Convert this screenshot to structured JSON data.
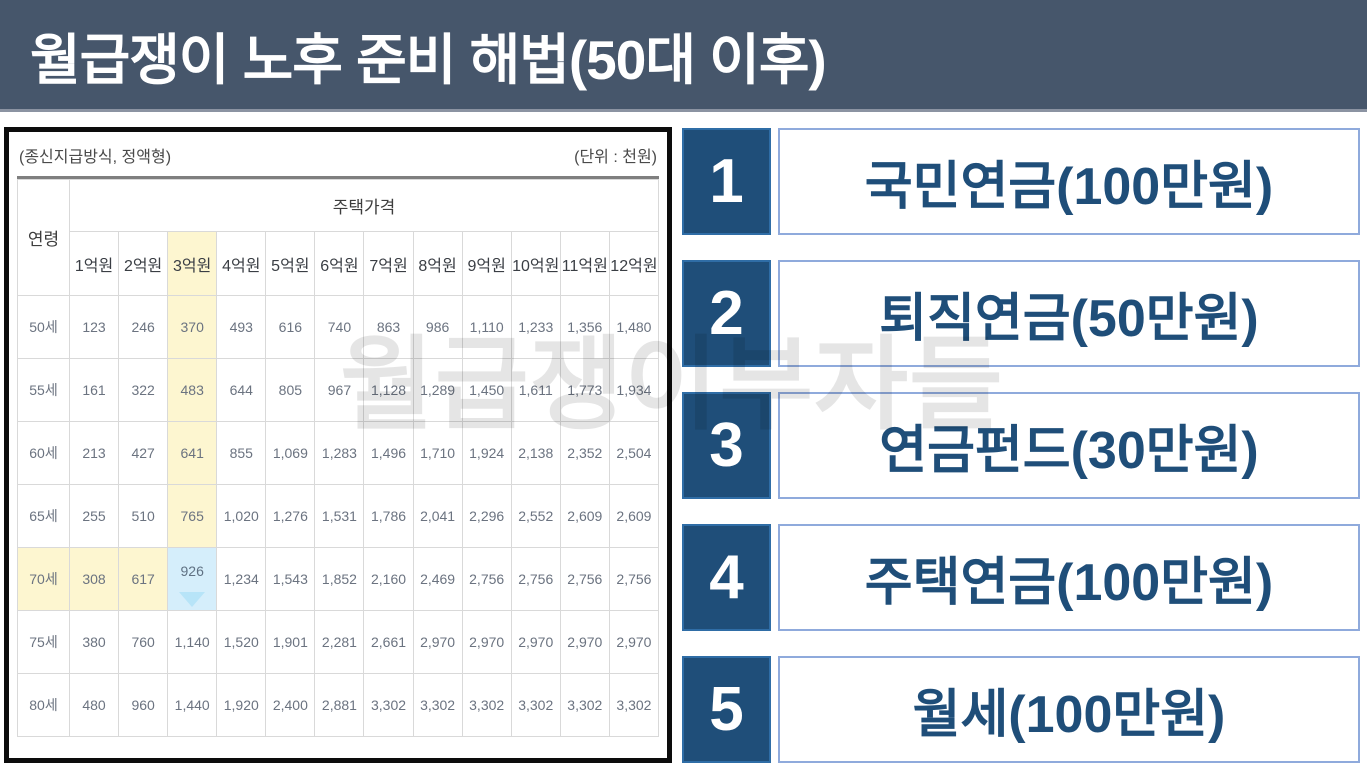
{
  "header": {
    "title": "월급쟁이 노후 준비 해법(50대 이후)",
    "bg_color": "#46566b",
    "text_color": "#ffffff"
  },
  "watermark": {
    "text": "월급쟁이부자들"
  },
  "table_panel": {
    "caption_left": "(종신지급방식, 정액형)",
    "caption_right": "(단위 : 천원)",
    "age_header": "연령",
    "price_header": "주택가격",
    "columns": [
      "1억원",
      "2억원",
      "3억원",
      "4억원",
      "5억원",
      "6억원",
      "7억원",
      "8억원",
      "9억원",
      "10억원",
      "11억원",
      "12억원"
    ],
    "rows": [
      {
        "age": "50세",
        "values": [
          "123",
          "246",
          "370",
          "493",
          "616",
          "740",
          "863",
          "986",
          "1,110",
          "1,233",
          "1,356",
          "1,480"
        ]
      },
      {
        "age": "55세",
        "values": [
          "161",
          "322",
          "483",
          "644",
          "805",
          "967",
          "1,128",
          "1,289",
          "1,450",
          "1,611",
          "1,773",
          "1,934"
        ]
      },
      {
        "age": "60세",
        "values": [
          "213",
          "427",
          "641",
          "855",
          "1,069",
          "1,283",
          "1,496",
          "1,710",
          "1,924",
          "2,138",
          "2,352",
          "2,504"
        ]
      },
      {
        "age": "65세",
        "values": [
          "255",
          "510",
          "765",
          "1,020",
          "1,276",
          "1,531",
          "1,786",
          "2,041",
          "2,296",
          "2,552",
          "2,609",
          "2,609"
        ]
      },
      {
        "age": "70세",
        "values": [
          "308",
          "617",
          "926",
          "1,234",
          "1,543",
          "1,852",
          "2,160",
          "2,469",
          "2,756",
          "2,756",
          "2,756",
          "2,756"
        ]
      },
      {
        "age": "75세",
        "values": [
          "380",
          "760",
          "1,140",
          "1,520",
          "1,901",
          "2,281",
          "2,661",
          "2,970",
          "2,970",
          "2,970",
          "2,970",
          "2,970"
        ]
      },
      {
        "age": "80세",
        "values": [
          "480",
          "960",
          "1,440",
          "1,920",
          "2,400",
          "2,881",
          "3,302",
          "3,302",
          "3,302",
          "3,302",
          "3,302",
          "3,302"
        ]
      }
    ],
    "highlights": {
      "yellow_col_index": 2,
      "yellow_col_row_indexes": [
        0,
        1,
        2,
        3
      ],
      "yellow_row_index": 4,
      "yellow_row_col_indexes": [
        0,
        1
      ],
      "selected_cell": {
        "row_index": 4,
        "col_index": 2
      },
      "yellow_color": "#fdf6d0",
      "selected_color": "#d5eefb"
    }
  },
  "list": {
    "badge_color": "#1f4e79",
    "box_border_color": "#8faadc",
    "label_color": "#1f4e79",
    "items": [
      {
        "number": "1",
        "label": "국민연금(100만원)"
      },
      {
        "number": "2",
        "label": "퇴직연금(50만원)"
      },
      {
        "number": "3",
        "label": "연금펀드(30만원)"
      },
      {
        "number": "4",
        "label": "주택연금(100만원)"
      },
      {
        "number": "5",
        "label": "월세(100만원)"
      }
    ]
  },
  "chart_data": {
    "type": "table",
    "title": "주택연금 월지급금 (종신지급방식, 정액형)",
    "unit": "천원",
    "columns": [
      "1억원",
      "2억원",
      "3억원",
      "4억원",
      "5억원",
      "6억원",
      "7억원",
      "8억원",
      "9억원",
      "10억원",
      "11억원",
      "12억원"
    ],
    "row_labels": [
      "50세",
      "55세",
      "60세",
      "65세",
      "70세",
      "75세",
      "80세"
    ],
    "values": [
      [
        123,
        246,
        370,
        493,
        616,
        740,
        863,
        986,
        1110,
        1233,
        1356,
        1480
      ],
      [
        161,
        322,
        483,
        644,
        805,
        967,
        1128,
        1289,
        1450,
        1611,
        1773,
        1934
      ],
      [
        213,
        427,
        641,
        855,
        1069,
        1283,
        1496,
        1710,
        1924,
        2138,
        2352,
        2504
      ],
      [
        255,
        510,
        765,
        1020,
        1276,
        1531,
        1786,
        2041,
        2296,
        2552,
        2609,
        2609
      ],
      [
        308,
        617,
        926,
        1234,
        1543,
        1852,
        2160,
        2469,
        2756,
        2756,
        2756,
        2756
      ],
      [
        380,
        760,
        1140,
        1520,
        1901,
        2281,
        2661,
        2970,
        2970,
        2970,
        2970,
        2970
      ],
      [
        480,
        960,
        1440,
        1920,
        2400,
        2881,
        3302,
        3302,
        3302,
        3302,
        3302,
        3302
      ]
    ]
  }
}
